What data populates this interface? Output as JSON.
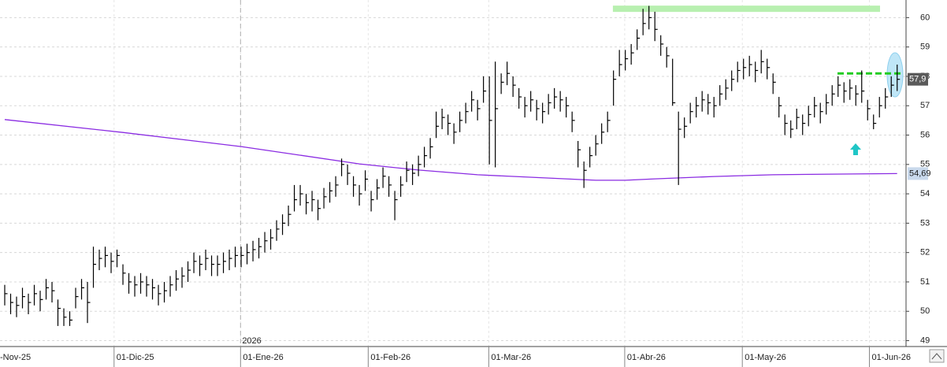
{
  "chart_data": {
    "type": "ohlc",
    "color": "#000000",
    "high": [
      50.9,
      50.6,
      50.5,
      50.8,
      50.6,
      50.9,
      50.7,
      51.1,
      51.0,
      50.4,
      50.1,
      50.0,
      50.8,
      51.1,
      51.0,
      52.2,
      52.1,
      52.2,
      52.0,
      52.1,
      51.6,
      51.3,
      51.2,
      51.3,
      51.2,
      51.1,
      50.9,
      51.0,
      51.2,
      51.4,
      51.5,
      51.7,
      52.0,
      51.9,
      52.1,
      51.9,
      51.9,
      52.0,
      52.1,
      52.2,
      52.2,
      52.3,
      52.4,
      52.5,
      52.7,
      52.8,
      53.1,
      53.3,
      53.6,
      54.3,
      54.3,
      54.0,
      54.1,
      53.8,
      54.2,
      54.4,
      54.6,
      55.2,
      55.0,
      54.6,
      54.3,
      54.8,
      54.1,
      54.5,
      54.9,
      54.6,
      54.1,
      54.6,
      55.1,
      55.0,
      55.3,
      55.6,
      55.9,
      56.8,
      56.9,
      56.7,
      56.4,
      56.8,
      57.1,
      57.5,
      57.2,
      58.0,
      58.0,
      58.5,
      58.1,
      58.5,
      58.0,
      57.6,
      57.3,
      57.5,
      57.2,
      57.1,
      57.4,
      57.6,
      57.5,
      57.3,
      56.8,
      55.8,
      55.1,
      55.6,
      56.0,
      56.4,
      56.8,
      58.2,
      58.9,
      58.9,
      59.1,
      59.6,
      60.3,
      60.4,
      60.2,
      59.4,
      59.0,
      58.6,
      56.8,
      56.6,
      57.1,
      57.3,
      57.5,
      57.4,
      57.3,
      57.7,
      57.9,
      58.2,
      58.5,
      58.6,
      58.7,
      58.5,
      58.9,
      58.6,
      58.1,
      57.3,
      56.7,
      56.5,
      56.9,
      56.7,
      57.0,
      57.3,
      57.1,
      57.4,
      57.7,
      58.0,
      57.8,
      57.9,
      57.7,
      58.2,
      57.2,
      56.7,
      57.3,
      57.6,
      58.0,
      58.4
    ],
    "low": [
      50.2,
      49.9,
      49.8,
      50.1,
      49.9,
      50.2,
      50.0,
      50.4,
      50.3,
      49.5,
      49.5,
      49.5,
      50.1,
      50.4,
      49.6,
      50.8,
      51.4,
      51.5,
      51.3,
      51.5,
      50.9,
      50.6,
      50.5,
      50.6,
      50.5,
      50.4,
      50.2,
      50.3,
      50.5,
      50.7,
      50.8,
      51.0,
      51.3,
      51.2,
      51.4,
      51.2,
      51.2,
      51.3,
      51.4,
      51.5,
      51.5,
      51.6,
      51.7,
      51.8,
      52.0,
      52.1,
      52.4,
      52.6,
      52.9,
      53.4,
      53.6,
      53.3,
      53.4,
      53.1,
      53.5,
      53.7,
      53.9,
      54.6,
      54.3,
      53.9,
      53.6,
      54.1,
      53.4,
      53.8,
      54.2,
      53.9,
      53.1,
      53.9,
      54.4,
      54.3,
      54.6,
      54.9,
      55.2,
      55.9,
      56.2,
      56.0,
      55.7,
      56.1,
      56.4,
      56.8,
      56.5,
      57.1,
      55.0,
      54.9,
      57.4,
      57.7,
      57.3,
      56.9,
      56.6,
      56.8,
      56.5,
      56.4,
      56.7,
      56.9,
      56.8,
      56.6,
      56.1,
      54.9,
      54.2,
      54.9,
      55.3,
      55.7,
      56.1,
      57.0,
      58.0,
      58.2,
      58.4,
      58.9,
      59.4,
      59.6,
      59.2,
      58.7,
      58.3,
      57.0,
      54.3,
      55.9,
      56.4,
      56.6,
      56.8,
      56.7,
      56.6,
      57.0,
      57.2,
      57.5,
      57.8,
      57.9,
      58.0,
      57.8,
      58.1,
      57.9,
      57.4,
      56.6,
      56.0,
      55.9,
      56.2,
      56.0,
      56.3,
      56.6,
      56.4,
      56.7,
      57.0,
      57.3,
      57.1,
      57.2,
      57.0,
      57.1,
      56.5,
      56.2,
      56.6,
      56.9,
      57.3,
      57.5
    ],
    "close": [
      50.6,
      50.3,
      50.2,
      50.5,
      50.3,
      50.6,
      50.4,
      50.8,
      50.7,
      50.1,
      49.8,
      49.7,
      50.5,
      50.8,
      50.3,
      51.6,
      51.8,
      51.9,
      51.7,
      51.9,
      51.3,
      51.0,
      50.9,
      51.0,
      50.9,
      50.8,
      50.6,
      50.7,
      50.9,
      51.1,
      51.2,
      51.4,
      51.7,
      51.6,
      51.8,
      51.6,
      51.6,
      51.7,
      51.8,
      51.9,
      51.9,
      52.0,
      52.1,
      52.2,
      52.4,
      52.5,
      52.8,
      53.0,
      53.3,
      53.8,
      54.0,
      53.7,
      53.8,
      53.5,
      53.9,
      54.1,
      54.3,
      55.0,
      54.7,
      54.3,
      54.0,
      54.5,
      53.8,
      54.2,
      54.6,
      54.3,
      53.8,
      54.3,
      54.8,
      54.7,
      55.0,
      55.3,
      55.6,
      56.3,
      56.6,
      56.4,
      56.1,
      56.5,
      56.8,
      57.2,
      56.9,
      57.5,
      56.5,
      56.9,
      57.8,
      58.1,
      57.7,
      57.3,
      57.0,
      57.2,
      56.9,
      56.8,
      57.1,
      57.3,
      57.2,
      57.0,
      56.5,
      55.5,
      54.8,
      55.3,
      55.7,
      56.1,
      56.5,
      57.9,
      58.4,
      58.6,
      58.8,
      59.3,
      59.8,
      60.0,
      59.6,
      59.1,
      58.7,
      57.1,
      56.2,
      56.3,
      56.8,
      57.0,
      57.2,
      57.1,
      57.0,
      57.4,
      57.6,
      57.9,
      58.2,
      58.3,
      58.4,
      58.2,
      58.5,
      58.3,
      57.8,
      57.0,
      56.4,
      56.2,
      56.6,
      56.4,
      56.7,
      57.0,
      56.8,
      57.1,
      57.4,
      57.7,
      57.5,
      57.6,
      57.4,
      57.5,
      56.9,
      56.4,
      57.0,
      57.3,
      57.7,
      57.9
    ],
    "close_label": "57,9",
    "overlay": {
      "type": "line",
      "color": "#8a2be2",
      "x": [
        0,
        20,
        40,
        60,
        70,
        80,
        100,
        105,
        110,
        120,
        130,
        140,
        151
      ],
      "values": [
        56.53,
        56.09,
        55.61,
        55.02,
        54.81,
        54.65,
        54.46,
        54.46,
        54.51,
        54.59,
        54.65,
        54.67,
        54.69
      ],
      "last_label": "54,69"
    },
    "hlines": [
      {
        "y": 60.3,
        "x": [
          102.9,
          148.1
        ],
        "color": "#b8f0b0",
        "style": "solid"
      },
      {
        "y": 58.1,
        "x": [
          140.9,
          151.8
        ],
        "color": "#22cc22",
        "style": "dashed"
      }
    ],
    "ylim": [
      48.8,
      60.6
    ],
    "yticks": [
      49,
      50,
      51,
      52,
      53,
      54,
      55,
      56,
      57,
      58,
      59,
      60
    ],
    "xlim": [
      -0.8,
      152.5
    ],
    "xticks": [
      {
        "value": -3,
        "label": "-Nov-25"
      },
      {
        "value": 18.5,
        "label": "01-Dic-25"
      },
      {
        "value": 39.9,
        "label": "01-Ene-26"
      },
      {
        "value": 61.5,
        "label": "01-Feb-26"
      },
      {
        "value": 81.9,
        "label": "01-Mar-26"
      },
      {
        "value": 104.9,
        "label": "01-Abr-26"
      },
      {
        "value": 124.8,
        "label": "01-May-26"
      },
      {
        "value": 146.3,
        "label": "01-Jun-26"
      }
    ],
    "year_marker": {
      "value": 39.9,
      "label": "2026"
    },
    "grid": true
  }
}
